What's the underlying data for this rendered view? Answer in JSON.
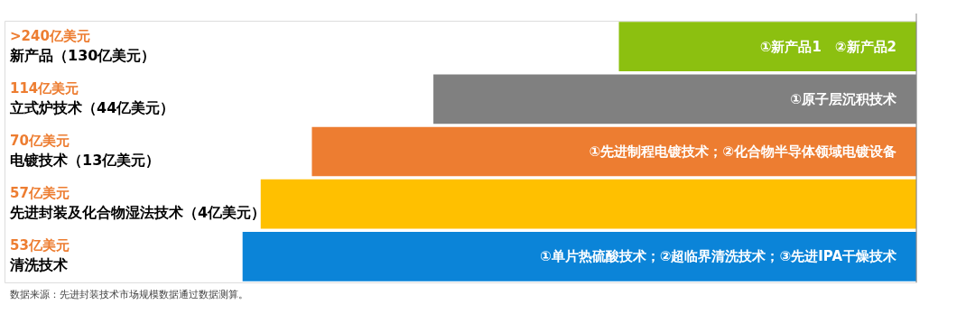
{
  "chart_data": {
    "type": "other",
    "categories": [
      "新产品（130亿美元）",
      "立式炉技术（44亿美元）",
      "电镀技术（13亿美元）",
      "先进封装及化合物湿法技术（4亿美元）",
      "清洗技术"
    ],
    "values": [
      240,
      114,
      70,
      57,
      53
    ],
    "colors": [
      "#8cc010",
      "#808080",
      "#ed7d31",
      "#ffc000",
      "#0b84d8"
    ],
    "value_labels": [
      ">240亿美元",
      "114亿美元",
      "70亿美元",
      "57亿美元",
      "53亿美元"
    ],
    "annotations": [
      "①新产品1　②新产品2",
      "①原子层沉积技术",
      "①先进制程电镀技术；②化合物半导体领域电镀设备",
      null,
      "①单片热硫酸技术；②超临界清洗技术；③先进IPA干燥技术",
      "数据来源：先进封装技术市场规模数据通过数据测算。"
    ]
  }
}
